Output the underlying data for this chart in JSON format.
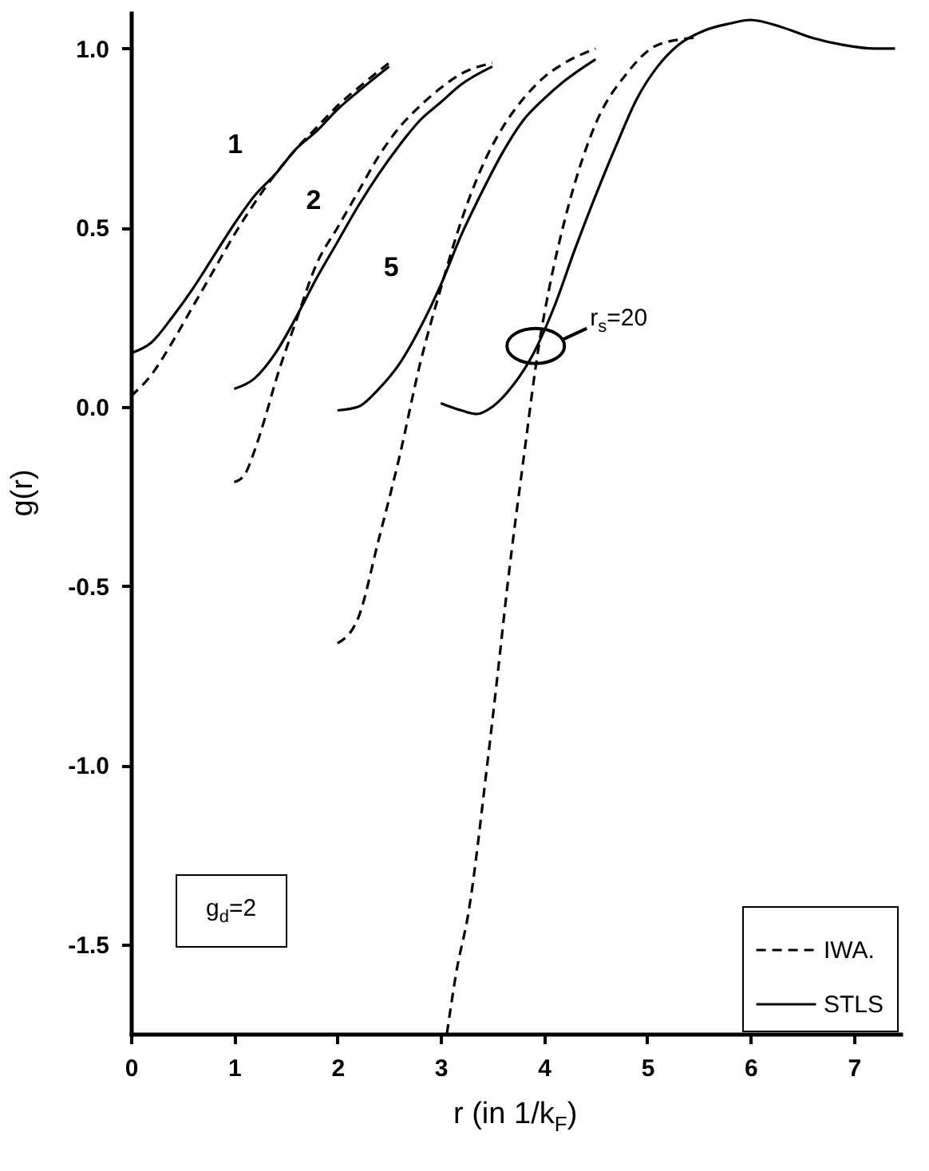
{
  "chart_data": {
    "type": "line",
    "xlabel": "r (in 1/k$_{F}$)",
    "ylabel": "g(r)",
    "xlim": [
      0,
      7.45
    ],
    "ylim": [
      -1.75,
      1.1
    ],
    "xticks": [
      0,
      1,
      2,
      3,
      4,
      5,
      6,
      7
    ],
    "yticks": [
      {
        "value": -1.5,
        "label": "-1.5"
      },
      {
        "value": -1,
        "label": "-1.0"
      },
      {
        "value": -0.5,
        "label": "-0.5"
      },
      {
        "value": 0,
        "label": "0.0"
      },
      {
        "value": 0.5,
        "label": "0.5"
      },
      {
        "value": 1,
        "label": "1.0"
      }
    ],
    "legend": "bottom right",
    "grid": false,
    "annotations": [
      "1",
      "2",
      "5",
      {
        "text": "r$_{s}$=20",
        "x": 3.92,
        "y": 0.17
      },
      "g$_{d}$=2"
    ],
    "series": [
      {
        "name": "IWA.",
        "color": "#000000",
        "line_style": "dashed",
        "x": [
          0,
          0.2,
          0.4,
          0.6,
          0.8,
          1.0,
          1.2,
          1.4,
          1.6,
          1.8,
          2.0,
          2.2,
          2.5
        ],
        "values": [
          0.03,
          0.09,
          0.18,
          0.28,
          0.38,
          0.48,
          0.57,
          0.65,
          0.72,
          0.78,
          0.84,
          0.89,
          0.96
        ]
      },
      {
        "name": "STLS",
        "color": "#000000",
        "line_style": "solid",
        "x": [
          0,
          0.2,
          0.4,
          0.6,
          0.8,
          1.0,
          1.2,
          1.4,
          1.6,
          1.8,
          2.0,
          2.2,
          2.5
        ],
        "values": [
          0.15,
          0.18,
          0.25,
          0.33,
          0.42,
          0.51,
          0.59,
          0.65,
          0.72,
          0.77,
          0.83,
          0.88,
          0.95
        ]
      },
      {
        "color": "#000000",
        "line_style": "dashed",
        "x": [
          1.0,
          1.1,
          1.2,
          1.3,
          1.4,
          1.6,
          1.8,
          2.0,
          2.2,
          2.4,
          2.6,
          2.8,
          3.0,
          3.2,
          3.5
        ],
        "values": [
          -0.21,
          -0.19,
          -0.12,
          -0.03,
          0.07,
          0.24,
          0.4,
          0.5,
          0.6,
          0.7,
          0.78,
          0.84,
          0.89,
          0.93,
          0.96
        ]
      },
      {
        "color": "#000000",
        "line_style": "solid",
        "x": [
          1.0,
          1.2,
          1.4,
          1.6,
          1.8,
          2.0,
          2.2,
          2.4,
          2.6,
          2.8,
          3.0,
          3.2,
          3.5
        ],
        "values": [
          0.05,
          0.08,
          0.15,
          0.25,
          0.36,
          0.46,
          0.56,
          0.65,
          0.73,
          0.8,
          0.85,
          0.9,
          0.95
        ]
      },
      {
        "color": "#000000",
        "line_style": "dashed",
        "x": [
          2.0,
          2.2,
          2.4,
          2.6,
          2.8,
          3.0,
          3.2,
          3.4,
          3.6,
          3.8,
          4.0,
          4.2,
          4.5
        ],
        "values": [
          -0.66,
          -0.59,
          -0.37,
          -0.14,
          0.12,
          0.33,
          0.52,
          0.67,
          0.78,
          0.86,
          0.92,
          0.96,
          1.0
        ]
      },
      {
        "color": "#000000",
        "line_style": "solid",
        "x": [
          2.0,
          2.2,
          2.4,
          2.6,
          2.8,
          3.0,
          3.2,
          3.4,
          3.6,
          3.8,
          4.0,
          4.2,
          4.5
        ],
        "values": [
          -0.01,
          0.0,
          0.05,
          0.12,
          0.22,
          0.34,
          0.48,
          0.6,
          0.71,
          0.8,
          0.86,
          0.91,
          0.97
        ]
      },
      {
        "color": "#000000",
        "line_style": "dashed",
        "x": [
          3.06,
          3.15,
          3.27,
          3.45,
          3.55,
          3.65,
          3.8,
          3.95,
          4.05,
          4.2,
          4.5,
          4.8,
          5.1,
          5.45
        ],
        "values": [
          -1.75,
          -1.58,
          -1.41,
          -1.0,
          -0.75,
          -0.49,
          -0.15,
          0.17,
          0.33,
          0.52,
          0.79,
          0.93,
          1.01,
          1.03
        ]
      },
      {
        "color": "#000000",
        "line_style": "solid",
        "x": [
          3.0,
          3.2,
          3.35,
          3.5,
          3.7,
          3.9,
          4.1,
          4.3,
          4.5,
          4.7,
          4.9,
          5.1,
          5.3,
          5.55,
          5.8,
          6.0,
          6.3,
          6.6,
          6.9,
          7.2,
          7.4
        ],
        "values": [
          0.01,
          -0.01,
          -0.02,
          0.0,
          0.06,
          0.15,
          0.28,
          0.44,
          0.59,
          0.73,
          0.86,
          0.95,
          1.01,
          1.05,
          1.07,
          1.08,
          1.06,
          1.03,
          1.01,
          1.0,
          1.0
        ]
      }
    ]
  }
}
